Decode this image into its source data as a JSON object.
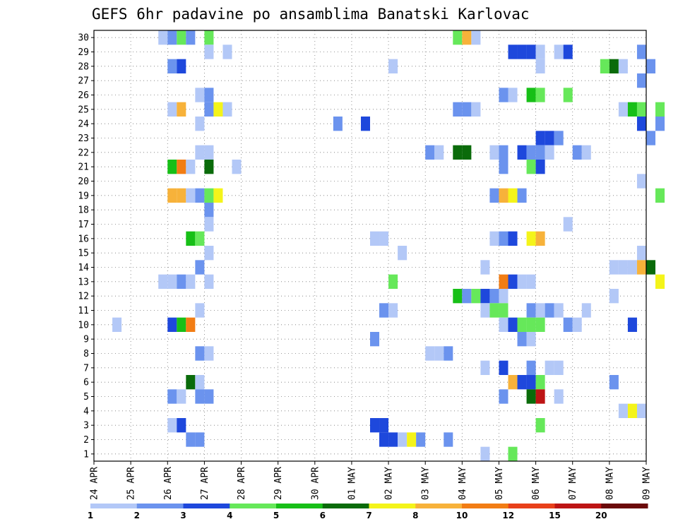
{
  "chart_data": {
    "type": "heatmap",
    "title": "GEFS 6hr padavine po ansamblima Banatski Karlovac",
    "xlabel": "",
    "ylabel": "",
    "x_start": "2024-04-24T00",
    "x_end": "2024-05-09T00",
    "x_step_hours": 6,
    "x_ticks": [
      "24 APR",
      "25 APR",
      "26 APR",
      "27 APR",
      "28 APR",
      "29 APR",
      "30 APR",
      "01 MAY",
      "02 MAY",
      "03 MAY",
      "04 MAY",
      "05 MAY",
      "06 MAY",
      "07 MAY",
      "08 MAY",
      "09 MAY"
    ],
    "y_ticks": [
      1,
      2,
      3,
      4,
      5,
      6,
      7,
      8,
      9,
      10,
      11,
      12,
      13,
      14,
      15,
      16,
      17,
      18,
      19,
      20,
      21,
      22,
      23,
      24,
      25,
      26,
      27,
      28,
      29,
      30
    ],
    "ylim": [
      0.5,
      30.5
    ],
    "grid": true,
    "legend": {
      "placement": "bottom",
      "labels": [
        "1",
        "2",
        "3",
        "4",
        "5",
        "6",
        "7",
        "8",
        "10",
        "12",
        "15",
        "20"
      ],
      "colors": [
        "#b3c8f7",
        "#6b93ee",
        "#1e48dc",
        "#66e85a",
        "#17bf17",
        "#0a6b0a",
        "#f4f41a",
        "#f7b23a",
        "#f27d14",
        "#e8401a",
        "#bd1414",
        "#6b0a0a"
      ]
    },
    "cells": [
      [
        "2024-04-25T18",
        30,
        1
      ],
      [
        "2024-04-26T00",
        30,
        2
      ],
      [
        "2024-04-26T06",
        30,
        4
      ],
      [
        "2024-04-26T12",
        30,
        2
      ],
      [
        "2024-04-27T00",
        30,
        4
      ],
      [
        "2024-05-03T18",
        30,
        4
      ],
      [
        "2024-05-04T00",
        30,
        8
      ],
      [
        "2024-05-04T06",
        30,
        1
      ],
      [
        "2024-04-27T00",
        29,
        1
      ],
      [
        "2024-04-27T12",
        29,
        1
      ],
      [
        "2024-05-05T06",
        29,
        3
      ],
      [
        "2024-05-05T12",
        29,
        3
      ],
      [
        "2024-05-05T18",
        29,
        3
      ],
      [
        "2024-05-06T00",
        29,
        1
      ],
      [
        "2024-05-06T12",
        29,
        1
      ],
      [
        "2024-05-06T18",
        29,
        3
      ],
      [
        "2024-05-08T18",
        29,
        2
      ],
      [
        "2024-04-26T00",
        28,
        2
      ],
      [
        "2024-04-26T06",
        28,
        3
      ],
      [
        "2024-05-02T00",
        28,
        1
      ],
      [
        "2024-05-06T00",
        28,
        1
      ],
      [
        "2024-05-07T18",
        28,
        4
      ],
      [
        "2024-05-08T00",
        28,
        6
      ],
      [
        "2024-05-08T06",
        28,
        1
      ],
      [
        "2024-05-09T00",
        28,
        2
      ],
      [
        "2024-05-08T18",
        27,
        2
      ],
      [
        "2024-04-26T18",
        26,
        1
      ],
      [
        "2024-04-27T00",
        26,
        2
      ],
      [
        "2024-05-05T00",
        26,
        2
      ],
      [
        "2024-05-05T06",
        26,
        1
      ],
      [
        "2024-05-05T18",
        26,
        5
      ],
      [
        "2024-05-06T00",
        26,
        4
      ],
      [
        "2024-05-06T18",
        26,
        4
      ],
      [
        "2024-04-26T00",
        25,
        1
      ],
      [
        "2024-04-26T06",
        25,
        8
      ],
      [
        "2024-04-27T00",
        25,
        2
      ],
      [
        "2024-04-27T06",
        25,
        7
      ],
      [
        "2024-04-27T12",
        25,
        1
      ],
      [
        "2024-05-03T18",
        25,
        2
      ],
      [
        "2024-05-04T00",
        25,
        2
      ],
      [
        "2024-05-04T06",
        25,
        1
      ],
      [
        "2024-05-08T06",
        25,
        1
      ],
      [
        "2024-05-08T12",
        25,
        5
      ],
      [
        "2024-05-08T18",
        25,
        4
      ],
      [
        "2024-05-09T06",
        25,
        4
      ],
      [
        "2024-04-26T18",
        24,
        1
      ],
      [
        "2024-04-30T12",
        24,
        2
      ],
      [
        "2024-05-01T06",
        24,
        3
      ],
      [
        "2024-05-08T18",
        24,
        3
      ],
      [
        "2024-05-09T06",
        24,
        2
      ],
      [
        "2024-05-06T00",
        23,
        3
      ],
      [
        "2024-05-06T06",
        23,
        3
      ],
      [
        "2024-05-06T12",
        23,
        2
      ],
      [
        "2024-05-09T00",
        23,
        2
      ],
      [
        "2024-04-26T18",
        22,
        1
      ],
      [
        "2024-04-27T00",
        22,
        1
      ],
      [
        "2024-05-03T00",
        22,
        2
      ],
      [
        "2024-05-03T06",
        22,
        1
      ],
      [
        "2024-05-03T18",
        22,
        6
      ],
      [
        "2024-05-04T00",
        22,
        6
      ],
      [
        "2024-05-04T18",
        22,
        1
      ],
      [
        "2024-05-05T00",
        22,
        2
      ],
      [
        "2024-05-05T12",
        22,
        3
      ],
      [
        "2024-05-05T18",
        22,
        2
      ],
      [
        "2024-05-06T00",
        22,
        2
      ],
      [
        "2024-05-06T06",
        22,
        1
      ],
      [
        "2024-05-07T00",
        22,
        2
      ],
      [
        "2024-05-07T06",
        22,
        1
      ],
      [
        "2024-04-26T00",
        21,
        5
      ],
      [
        "2024-04-26T06",
        21,
        10
      ],
      [
        "2024-04-26T12",
        21,
        1
      ],
      [
        "2024-04-27T00",
        21,
        6
      ],
      [
        "2024-04-27T18",
        21,
        1
      ],
      [
        "2024-05-05T00",
        21,
        2
      ],
      [
        "2024-05-05T18",
        21,
        4
      ],
      [
        "2024-05-06T00",
        21,
        3
      ],
      [
        "2024-05-08T18",
        20,
        1
      ],
      [
        "2024-04-26T00",
        19,
        8
      ],
      [
        "2024-04-26T06",
        19,
        8
      ],
      [
        "2024-04-26T12",
        19,
        1
      ],
      [
        "2024-04-26T18",
        19,
        2
      ],
      [
        "2024-04-27T00",
        19,
        4
      ],
      [
        "2024-04-27T06",
        19,
        7
      ],
      [
        "2024-05-04T18",
        19,
        2
      ],
      [
        "2024-05-05T00",
        19,
        8
      ],
      [
        "2024-05-05T06",
        19,
        7
      ],
      [
        "2024-05-05T12",
        19,
        2
      ],
      [
        "2024-05-09T06",
        19,
        4
      ],
      [
        "2024-04-27T00",
        18,
        2
      ],
      [
        "2024-04-27T00",
        17,
        1
      ],
      [
        "2024-05-06T18",
        17,
        1
      ],
      [
        "2024-04-26T12",
        16,
        5
      ],
      [
        "2024-04-26T18",
        16,
        4
      ],
      [
        "2024-05-01T18",
        16,
        1
      ],
      [
        "2024-05-01T12",
        16,
        1
      ],
      [
        "2024-05-04T18",
        16,
        1
      ],
      [
        "2024-05-05T00",
        16,
        2
      ],
      [
        "2024-05-05T06",
        16,
        3
      ],
      [
        "2024-05-05T18",
        16,
        7
      ],
      [
        "2024-05-06T00",
        16,
        8
      ],
      [
        "2024-04-27T00",
        15,
        1
      ],
      [
        "2024-05-02T06",
        15,
        1
      ],
      [
        "2024-05-08T18",
        15,
        1
      ],
      [
        "2024-04-26T18",
        14,
        2
      ],
      [
        "2024-05-04T12",
        14,
        1
      ],
      [
        "2024-05-08T00",
        14,
        1
      ],
      [
        "2024-05-08T06",
        14,
        1
      ],
      [
        "2024-05-08T12",
        14,
        1
      ],
      [
        "2024-05-08T18",
        14,
        8
      ],
      [
        "2024-05-09T00",
        14,
        6
      ],
      [
        "2024-04-25T18",
        13,
        1
      ],
      [
        "2024-04-26T00",
        13,
        1
      ],
      [
        "2024-04-26T06",
        13,
        2
      ],
      [
        "2024-04-26T12",
        13,
        1
      ],
      [
        "2024-04-27T00",
        13,
        1
      ],
      [
        "2024-05-02T00",
        13,
        4
      ],
      [
        "2024-05-05T00",
        13,
        10
      ],
      [
        "2024-05-05T06",
        13,
        3
      ],
      [
        "2024-05-05T12",
        13,
        1
      ],
      [
        "2024-05-05T18",
        13,
        1
      ],
      [
        "2024-05-09T06",
        13,
        7
      ],
      [
        "2024-05-03T18",
        12,
        5
      ],
      [
        "2024-05-04T00",
        12,
        2
      ],
      [
        "2024-05-04T06",
        12,
        4
      ],
      [
        "2024-05-04T12",
        12,
        3
      ],
      [
        "2024-05-04T18",
        12,
        2
      ],
      [
        "2024-05-05T00",
        12,
        1
      ],
      [
        "2024-05-08T00",
        12,
        1
      ],
      [
        "2024-04-26T18",
        11,
        1
      ],
      [
        "2024-05-01T18",
        11,
        2
      ],
      [
        "2024-05-02T00",
        11,
        1
      ],
      [
        "2024-05-04T12",
        11,
        1
      ],
      [
        "2024-05-04T18",
        11,
        4
      ],
      [
        "2024-05-05T00",
        11,
        4
      ],
      [
        "2024-05-05T18",
        11,
        2
      ],
      [
        "2024-05-06T00",
        11,
        1
      ],
      [
        "2024-05-06T06",
        11,
        2
      ],
      [
        "2024-05-06T12",
        11,
        1
      ],
      [
        "2024-05-07T06",
        11,
        1
      ],
      [
        "2024-04-24T12",
        10,
        1
      ],
      [
        "2024-04-26T00",
        10,
        3
      ],
      [
        "2024-04-26T06",
        10,
        5
      ],
      [
        "2024-04-26T12",
        10,
        10
      ],
      [
        "2024-05-05T00",
        10,
        1
      ],
      [
        "2024-05-05T06",
        10,
        3
      ],
      [
        "2024-05-05T12",
        10,
        4
      ],
      [
        "2024-05-05T18",
        10,
        4
      ],
      [
        "2024-05-06T00",
        10,
        4
      ],
      [
        "2024-05-06T18",
        10,
        2
      ],
      [
        "2024-05-07T00",
        10,
        1
      ],
      [
        "2024-05-08T12",
        10,
        3
      ],
      [
        "2024-05-01T12",
        9,
        2
      ],
      [
        "2024-05-05T12",
        9,
        2
      ],
      [
        "2024-05-05T18",
        9,
        1
      ],
      [
        "2024-04-26T18",
        8,
        2
      ],
      [
        "2024-04-27T00",
        8,
        1
      ],
      [
        "2024-05-03T00",
        8,
        1
      ],
      [
        "2024-05-03T06",
        8,
        1
      ],
      [
        "2024-05-03T12",
        8,
        2
      ],
      [
        "2024-05-04T12",
        7,
        1
      ],
      [
        "2024-05-05T00",
        7,
        3
      ],
      [
        "2024-05-05T18",
        7,
        2
      ],
      [
        "2024-05-06T06",
        7,
        1
      ],
      [
        "2024-05-06T12",
        7,
        1
      ],
      [
        "2024-04-26T12",
        6,
        6
      ],
      [
        "2024-04-26T18",
        6,
        1
      ],
      [
        "2024-05-05T06",
        6,
        8
      ],
      [
        "2024-05-05T12",
        6,
        3
      ],
      [
        "2024-05-05T18",
        6,
        3
      ],
      [
        "2024-05-06T00",
        6,
        4
      ],
      [
        "2024-05-08T00",
        6,
        2
      ],
      [
        "2024-04-26T00",
        5,
        2
      ],
      [
        "2024-04-26T06",
        5,
        1
      ],
      [
        "2024-04-26T18",
        5,
        2
      ],
      [
        "2024-04-27T00",
        5,
        2
      ],
      [
        "2024-05-05T00",
        5,
        2
      ],
      [
        "2024-05-05T18",
        5,
        6
      ],
      [
        "2024-05-06T00",
        5,
        15
      ],
      [
        "2024-05-06T12",
        5,
        1
      ],
      [
        "2024-05-08T06",
        4,
        1
      ],
      [
        "2024-05-08T12",
        4,
        7
      ],
      [
        "2024-05-08T18",
        4,
        1
      ],
      [
        "2024-04-26T00",
        3,
        1
      ],
      [
        "2024-04-26T06",
        3,
        3
      ],
      [
        "2024-05-01T12",
        3,
        3
      ],
      [
        "2024-05-01T18",
        3,
        3
      ],
      [
        "2024-05-06T00",
        3,
        4
      ],
      [
        "2024-04-26T12",
        2,
        2
      ],
      [
        "2024-04-26T18",
        2,
        2
      ],
      [
        "2024-05-01T18",
        2,
        3
      ],
      [
        "2024-05-02T00",
        2,
        3
      ],
      [
        "2024-05-02T06",
        2,
        1
      ],
      [
        "2024-05-02T12",
        2,
        7
      ],
      [
        "2024-05-02T18",
        2,
        2
      ],
      [
        "2024-05-03T12",
        2,
        2
      ],
      [
        "2024-05-04T12",
        1,
        1
      ],
      [
        "2024-05-05T06",
        1,
        4
      ]
    ]
  }
}
